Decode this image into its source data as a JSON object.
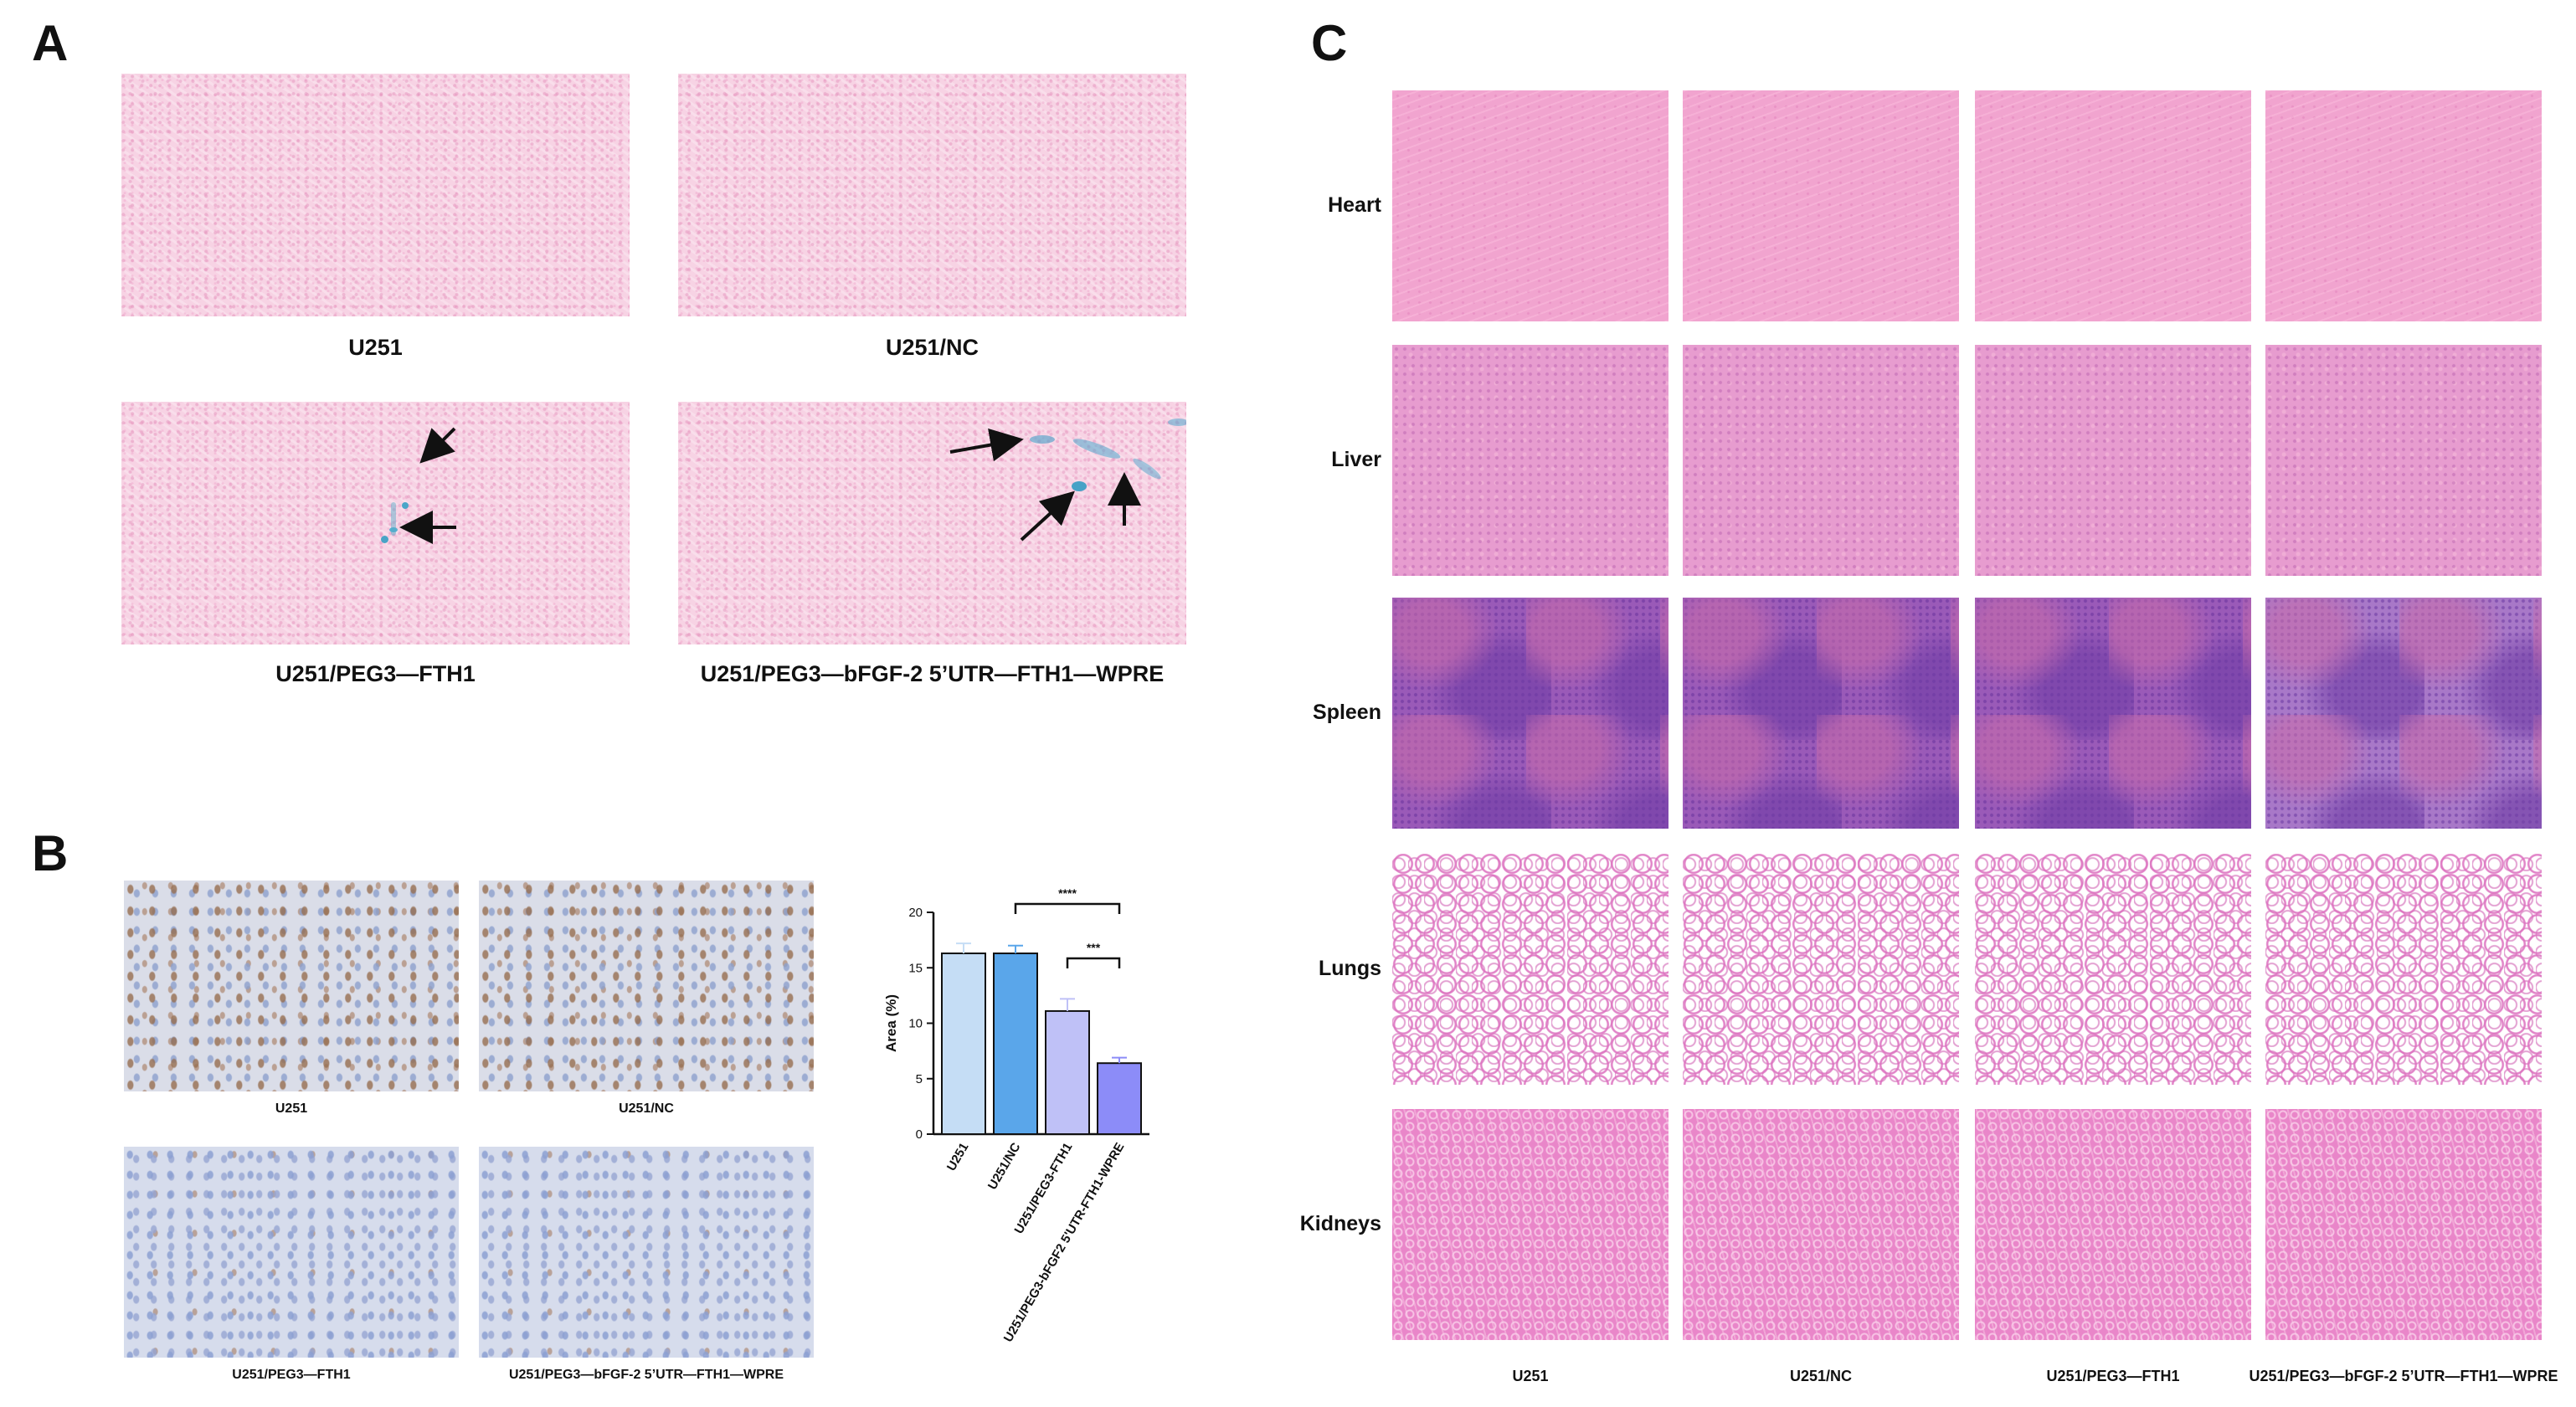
{
  "panels": {
    "a": "A",
    "b": "B",
    "c": "C"
  },
  "panel_a": {
    "captions": [
      "U251",
      "U251/NC",
      "U251/PEG3—FTH1",
      "U251/PEG3—bFGF-2 5’UTR—FTH1—WPRE"
    ]
  },
  "panel_b": {
    "captions": [
      "U251",
      "U251/NC",
      "U251/PEG3—FTH1",
      "U251/PEG3—bFGF-2 5’UTR—FTH1—WPRE"
    ]
  },
  "panel_c": {
    "rows": [
      "Heart",
      "Liver",
      "Spleen",
      "Lungs",
      "Kidneys"
    ],
    "columns": [
      "U251",
      "U251/NC",
      "U251/PEG3—FTH1",
      "U251/PEG3—bFGF-2 5’UTR—FTH1—WPRE"
    ]
  },
  "chart_data": {
    "type": "bar",
    "categories": [
      "U251",
      "U251/NC",
      "U251/PEG3-FTH1",
      "U251/PEG3-bFGF2 5'UTR-FTH1-WPRE"
    ],
    "values": [
      16.3,
      16.3,
      11.1,
      6.4
    ],
    "errors": [
      0.9,
      0.7,
      1.1,
      0.5
    ],
    "colors": [
      "#c5ddf5",
      "#5aa6ea",
      "#bfc1f7",
      "#8c8cf8"
    ],
    "ylabel": "Area (%)",
    "ylim": [
      0,
      20
    ],
    "yticks": [
      "0",
      "5",
      "10",
      "15",
      "20"
    ],
    "significance": [
      {
        "from": 1,
        "to": 3,
        "label": "****"
      },
      {
        "from": 2,
        "to": 3,
        "label": "***"
      }
    ]
  }
}
